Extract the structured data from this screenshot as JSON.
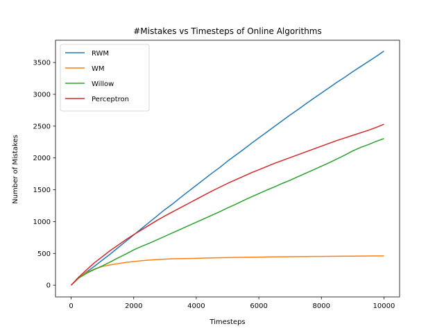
{
  "chart_data": {
    "type": "line",
    "title": "#Mistakes vs Timesteps of Online Algorithms",
    "xlabel": "Timesteps",
    "ylabel": "Number of Mistakes",
    "xlim": [
      -500,
      10500
    ],
    "ylim": [
      -184,
      3850
    ],
    "xticks": [
      0,
      2000,
      4000,
      6000,
      8000,
      10000
    ],
    "yticks": [
      0,
      500,
      1000,
      1500,
      2000,
      2500,
      3000,
      3500
    ],
    "grid": false,
    "legend_position": "top-left",
    "series": [
      {
        "name": "RWM",
        "color": "#1f77b4",
        "x": [
          0,
          250,
          500,
          750,
          1000,
          1250,
          1500,
          1750,
          2000,
          2250,
          2500,
          2750,
          3000,
          3250,
          3500,
          3750,
          4000,
          4250,
          4500,
          4750,
          5000,
          5250,
          5500,
          5750,
          6000,
          6250,
          6500,
          6750,
          7000,
          7250,
          7500,
          7750,
          8000,
          8250,
          8500,
          8750,
          9000,
          9250,
          9500,
          9750,
          10000
        ],
        "y": [
          0,
          120,
          210,
          300,
          395,
          490,
          590,
          690,
          790,
          890,
          990,
          1090,
          1190,
          1280,
          1380,
          1475,
          1570,
          1665,
          1760,
          1850,
          1950,
          2040,
          2130,
          2225,
          2315,
          2405,
          2495,
          2585,
          2675,
          2760,
          2850,
          2935,
          3020,
          3105,
          3190,
          3270,
          3355,
          3435,
          3515,
          3595,
          3680
        ]
      },
      {
        "name": "WM",
        "color": "#ff7f0e",
        "x": [
          0,
          250,
          500,
          750,
          1000,
          1250,
          1500,
          1750,
          2000,
          2250,
          2500,
          2750,
          3000,
          3250,
          3500,
          3750,
          4000,
          4250,
          4500,
          4750,
          5000,
          5250,
          5500,
          5750,
          6000,
          6250,
          6500,
          6750,
          7000,
          7250,
          7500,
          7750,
          8000,
          8250,
          8500,
          8750,
          9000,
          9250,
          9500,
          9750,
          10000
        ],
        "y": [
          0,
          130,
          200,
          255,
          295,
          320,
          340,
          358,
          372,
          385,
          395,
          403,
          410,
          415,
          418,
          420,
          423,
          426,
          429,
          432,
          435,
          437,
          439,
          440,
          442,
          444,
          446,
          447,
          448,
          450,
          451,
          452,
          453,
          454,
          455,
          456,
          457,
          458,
          459,
          460,
          461
        ]
      },
      {
        "name": "Willow",
        "color": "#2ca02c",
        "x": [
          0,
          250,
          500,
          750,
          1000,
          1250,
          1500,
          1750,
          2000,
          2250,
          2500,
          2750,
          3000,
          3250,
          3500,
          3750,
          4000,
          4250,
          4500,
          4750,
          5000,
          5250,
          5500,
          5750,
          6000,
          6250,
          6500,
          6750,
          7000,
          7250,
          7500,
          7750,
          8000,
          8250,
          8500,
          8750,
          9000,
          9250,
          9500,
          9750,
          10000
        ],
        "y": [
          0,
          115,
          190,
          250,
          305,
          365,
          430,
          490,
          555,
          610,
          660,
          715,
          770,
          825,
          880,
          935,
          990,
          1045,
          1100,
          1155,
          1215,
          1270,
          1330,
          1385,
          1440,
          1495,
          1545,
          1600,
          1650,
          1705,
          1760,
          1815,
          1870,
          1925,
          1985,
          2045,
          2110,
          2165,
          2210,
          2260,
          2305
        ]
      },
      {
        "name": "Perceptron",
        "color": "#d62728",
        "x": [
          0,
          250,
          500,
          750,
          1000,
          1250,
          1500,
          1750,
          2000,
          2250,
          2500,
          2750,
          3000,
          3250,
          3500,
          3750,
          4000,
          4250,
          4500,
          4750,
          5000,
          5250,
          5500,
          5750,
          6000,
          6250,
          6500,
          6750,
          7000,
          7250,
          7500,
          7750,
          8000,
          8250,
          8500,
          8750,
          9000,
          9250,
          9500,
          9750,
          10000
        ],
        "y": [
          0,
          130,
          245,
          355,
          450,
          545,
          630,
          715,
          795,
          870,
          945,
          1020,
          1090,
          1155,
          1220,
          1285,
          1350,
          1415,
          1480,
          1540,
          1600,
          1655,
          1710,
          1765,
          1815,
          1865,
          1915,
          1960,
          2005,
          2050,
          2095,
          2140,
          2185,
          2230,
          2275,
          2315,
          2355,
          2395,
          2435,
          2480,
          2530
        ]
      }
    ]
  }
}
